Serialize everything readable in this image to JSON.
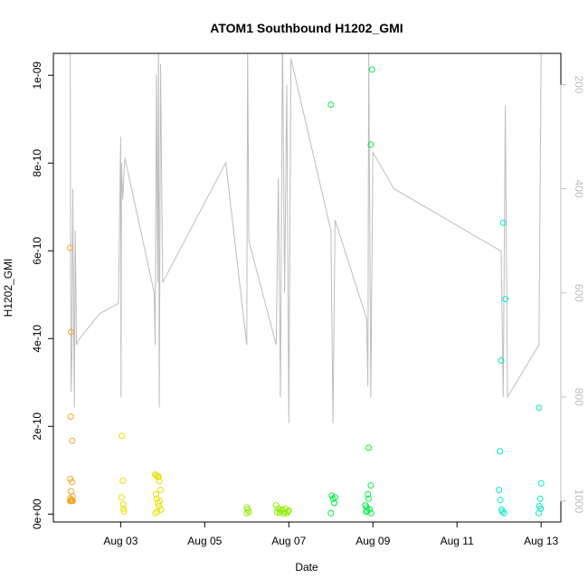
{
  "chart_data": {
    "type": "scatter",
    "title": "ATOM1 Southbound H1202_GMI",
    "xlabel": "Date",
    "ylabel": "H1202_GMI",
    "x_ticks": [
      "Aug 03",
      "Aug 05",
      "Aug 07",
      "Aug 09",
      "Aug 11",
      "Aug 13"
    ],
    "x_tick_values": [
      3,
      5,
      7,
      9,
      11,
      13
    ],
    "xlim": [
      1.4,
      13.47
    ],
    "y_ticks": [
      "0e+00",
      "2e-10",
      "4e-10",
      "6e-10",
      "8e-10",
      "1e-09"
    ],
    "y_tick_values": [
      0,
      2e-10,
      4e-10,
      6e-10,
      8e-10,
      1e-09
    ],
    "ylim": [
      -1.8e-11,
      1.05e-09
    ],
    "right_axis": {
      "ticks": [
        "200",
        "400",
        "600",
        "800",
        "1000"
      ],
      "tick_values": [
        200,
        400,
        600,
        800,
        1000
      ],
      "reversed": true,
      "lim": [
        140,
        1040
      ],
      "color": "#bdbdbd"
    },
    "pressure_trace": {
      "color": "#bdbdbd",
      "x": [
        1.8,
        1.81,
        1.82,
        1.84,
        1.86,
        1.9,
        1.92,
        1.95,
        2.0,
        2.5,
        2.95,
        3.0,
        3.01,
        3.02,
        3.05,
        3.1,
        3.8,
        3.82,
        3.85,
        3.88,
        3.9,
        3.92,
        3.95,
        4.0,
        5.5,
        6.0,
        6.02,
        6.05,
        6.7,
        6.75,
        6.8,
        6.85,
        6.9,
        6.95,
        7.0,
        7.05,
        8.0,
        8.05,
        8.1,
        8.85,
        8.88,
        8.9,
        8.95,
        9.0,
        9.5,
        12.05,
        12.1,
        12.15,
        12.2,
        12.95,
        13.0
      ],
      "y": [
        110,
        550,
        790,
        720,
        400,
        820,
        480,
        700,
        690,
        640,
        620,
        300,
        800,
        350,
        420,
        340,
        600,
        700,
        180,
        580,
        120,
        820,
        160,
        580,
        350,
        700,
        120,
        500,
        700,
        380,
        800,
        100,
        600,
        200,
        850,
        150,
        480,
        850,
        460,
        650,
        780,
        130,
        800,
        330,
        400,
        520,
        800,
        240,
        800,
        700,
        140
      ]
    },
    "series": [
      {
        "color": "#f5a623",
        "x": [
          1.8,
          1.82,
          1.81,
          1.85,
          1.8,
          1.84,
          1.82,
          1.86,
          1.8,
          1.83,
          1.85,
          1.81,
          1.84,
          1.86,
          1.82,
          1.8
        ],
        "y": [
          6.07e-10,
          4.15e-10,
          2.22e-10,
          1.67e-10,
          8e-11,
          7.3e-11,
          5.2e-11,
          4e-11,
          3.6e-11,
          3.3e-11,
          3e-11,
          3e-11,
          3e-11,
          3e-11,
          3e-11,
          3e-11
        ]
      },
      {
        "color": "#e6e000",
        "x": [
          3.03,
          3.05,
          3.02,
          3.06,
          3.07,
          3.08,
          3.82,
          3.85,
          3.88,
          3.9,
          3.92,
          3.95,
          3.84,
          3.86,
          3.93,
          3.89,
          3.91,
          3.96,
          3.87,
          3.83
        ],
        "y": [
          1.78e-10,
          7.6e-11,
          3.8e-11,
          2.2e-11,
          1.2e-11,
          6e-12,
          9e-11,
          8.8e-11,
          8.5e-11,
          8.5e-11,
          7.5e-11,
          5.5e-11,
          4.5e-11,
          3.5e-11,
          3e-11,
          2.5e-11,
          1.8e-11,
          1e-11,
          5e-12,
          2e-12
        ]
      },
      {
        "color": "#90ee00",
        "x": [
          6.0,
          6.02,
          6.05,
          6.0,
          6.7,
          6.75,
          6.8,
          6.85,
          6.9,
          6.95,
          7.0,
          6.78,
          6.88,
          6.98,
          6.72,
          6.92
        ],
        "y": [
          1.5e-11,
          1e-11,
          5e-12,
          2e-12,
          2e-11,
          1.2e-11,
          8e-12,
          1e-11,
          5e-12,
          2e-12,
          8e-12,
          3e-12,
          1e-12,
          6e-12,
          4e-12,
          1.2e-11
        ]
      },
      {
        "color": "#00ee44",
        "x": [
          8.0,
          8.02,
          8.05,
          8.08,
          8.0,
          8.1,
          8.98,
          8.95,
          8.9,
          8.85,
          8.95,
          8.88,
          8.9,
          8.82,
          8.92,
          8.86,
          8.96,
          8.84
        ],
        "y": [
          9.33e-10,
          4.2e-11,
          3.5e-11,
          2.5e-11,
          2e-12,
          3.8e-11,
          1.013e-09,
          8.42e-10,
          1.51e-10,
          1.5e-11,
          6.5e-11,
          4.5e-11,
          3.5e-11,
          2e-11,
          1e-11,
          8e-12,
          2e-12,
          5e-12
        ]
      },
      {
        "color": "#00eec0",
        "x": [
          12.1,
          12.15,
          12.05,
          12.02,
          12.0,
          12.03,
          12.06,
          12.08,
          12.12,
          12.95,
          13.0,
          12.98,
          12.96,
          12.99,
          12.94
        ],
        "y": [
          6.64e-10,
          4.9e-10,
          3.5e-10,
          1.43e-10,
          5.5e-11,
          3.2e-11,
          1e-11,
          5e-12,
          2e-12,
          2.42e-10,
          7e-11,
          3.5e-11,
          1.8e-11,
          1.2e-11,
          2e-12
        ]
      }
    ]
  }
}
